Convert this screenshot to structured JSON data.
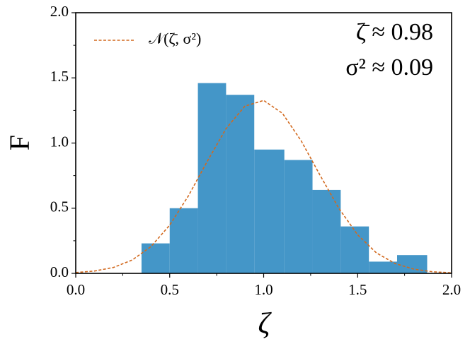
{
  "chart_data": {
    "type": "histogram",
    "x_label": "ζ",
    "y_label": "F",
    "bins": [
      0.35,
      0.5,
      0.65,
      0.8,
      0.95,
      1.11,
      1.26,
      1.41,
      1.56,
      1.71,
      1.87
    ],
    "values": [
      0.23,
      0.5,
      1.46,
      1.37,
      0.95,
      0.87,
      0.64,
      0.36,
      0.09,
      0.14
    ],
    "color": "#4496c8",
    "xlim": [
      0,
      2
    ],
    "ylim": [
      0,
      2
    ],
    "xticks": [
      {
        "value": 0,
        "label": "0.0"
      },
      {
        "value": 0.5,
        "label": "0.5"
      },
      {
        "value": 1,
        "label": "1.0"
      },
      {
        "value": 1.5,
        "label": "1.5"
      },
      {
        "value": 2,
        "label": "2.0"
      }
    ],
    "yticks": [
      {
        "value": 0,
        "label": "0.0"
      },
      {
        "value": 0.5,
        "label": "0.5"
      },
      {
        "value": 1,
        "label": "1.0"
      },
      {
        "value": 1.5,
        "label": "1.5"
      },
      {
        "value": 2,
        "label": "2.0"
      }
    ],
    "xminorticks": [
      0.25,
      0.75,
      1.25,
      1.75
    ],
    "yminorticks": [
      0.25,
      0.75,
      1.25,
      1.75
    ],
    "curve": {
      "name": "𝒩(ζ̄, σ²)",
      "color": "#d2691e",
      "x": [
        0,
        0.1,
        0.2,
        0.3,
        0.4,
        0.5,
        0.6,
        0.7,
        0.8,
        0.9,
        1.0,
        1.1,
        1.2,
        1.3,
        1.4,
        1.5,
        1.6,
        1.7,
        1.8,
        1.9,
        2.0
      ],
      "values": [
        0.006,
        0.018,
        0.045,
        0.102,
        0.205,
        0.37,
        0.596,
        0.86,
        1.111,
        1.283,
        1.327,
        1.228,
        1.016,
        0.753,
        0.499,
        0.296,
        0.157,
        0.075,
        0.032,
        0.012,
        0.004
      ]
    },
    "annotations": [
      "ζ̄ ≈ 0.98",
      "σ² ≈ 0.09"
    ],
    "legend": "upper left"
  }
}
